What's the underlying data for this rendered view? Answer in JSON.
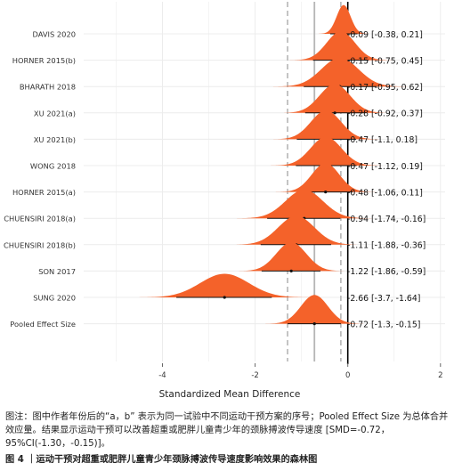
{
  "chart_data": {
    "type": "forest",
    "xlabel": "Standardized Mean Difference",
    "xlim": [
      -5.7,
      2.1
    ],
    "xticks": [
      -4,
      -2,
      0,
      2
    ],
    "grid": true,
    "reference_lines": {
      "null": 0,
      "pooled_estimate": -0.72,
      "pooled_ci": [
        -1.3,
        -0.15
      ]
    },
    "studies": [
      {
        "label": "DAVIS 2020",
        "estimate": -0.09,
        "ci": [
          -0.38,
          0.21
        ],
        "text": "-0.09 [-0.38, 0.21]"
      },
      {
        "label": "HORNER 2015(b)",
        "estimate": -0.15,
        "ci": [
          -0.75,
          0.45
        ],
        "text": "-0.15 [-0.75, 0.45]"
      },
      {
        "label": "BHARATH 2018",
        "estimate": -0.17,
        "ci": [
          -0.95,
          0.62
        ],
        "text": "-0.17 [-0.95, 0.62]"
      },
      {
        "label": "XU 2021(a)",
        "estimate": -0.28,
        "ci": [
          -0.92,
          0.37
        ],
        "text": "-0.28 [-0.92, 0.37]"
      },
      {
        "label": "XU 2021(b)",
        "estimate": -0.47,
        "ci": [
          -1.1,
          0.18
        ],
        "text": "-0.47 [-1.1, 0.18]"
      },
      {
        "label": "WONG 2018",
        "estimate": -0.47,
        "ci": [
          -1.12,
          0.19
        ],
        "text": "-0.47 [-1.12, 0.19]"
      },
      {
        "label": "HORNER 2015(a)",
        "estimate": -0.48,
        "ci": [
          -1.06,
          0.11
        ],
        "text": "-0.48 [-1.06, 0.11]"
      },
      {
        "label": "CHUENSIRI 2018(a)",
        "estimate": -0.94,
        "ci": [
          -1.74,
          -0.16
        ],
        "text": "-0.94 [-1.74, -0.16]"
      },
      {
        "label": "CHUENSIRI 2018(b)",
        "estimate": -1.11,
        "ci": [
          -1.88,
          -0.36
        ],
        "text": "-1.11 [-1.88, -0.36]"
      },
      {
        "label": "SON 2017",
        "estimate": -1.22,
        "ci": [
          -1.86,
          -0.59
        ],
        "text": "-1.22 [-1.86, -0.59]"
      },
      {
        "label": "SUNG 2020",
        "estimate": -2.66,
        "ci": [
          -3.7,
          -1.64
        ],
        "text": "-2.66 [-3.7, -1.64]"
      },
      {
        "label": "Pooled Effect Size",
        "estimate": -0.72,
        "ci": [
          -1.3,
          -0.15
        ],
        "text": "-0.72 [-1.3, -0.15]"
      }
    ],
    "colors": {
      "density": "#f4622a",
      "background": "#ffffff",
      "grid": "#ececec",
      "ref_line": "#b5b5b5",
      "zero_line": "#000000",
      "text": "#333333"
    }
  },
  "caption": {
    "note": "图注：图中作者年份后的“a，b” 表示为同一试验中不同运动干预方案的序号；Pooled Effect Size 为总体合并效应量。结果显示运动干预可以改善超重或肥胖儿童青少年的颈脉搏波传导速度 [SMD=-0.72，95%CI(-1.30，-0.15)]。",
    "title": "图 4 ｜运动干预对超重或肥胖儿童青少年颈脉搏波传导速度影响效果的森林图"
  }
}
